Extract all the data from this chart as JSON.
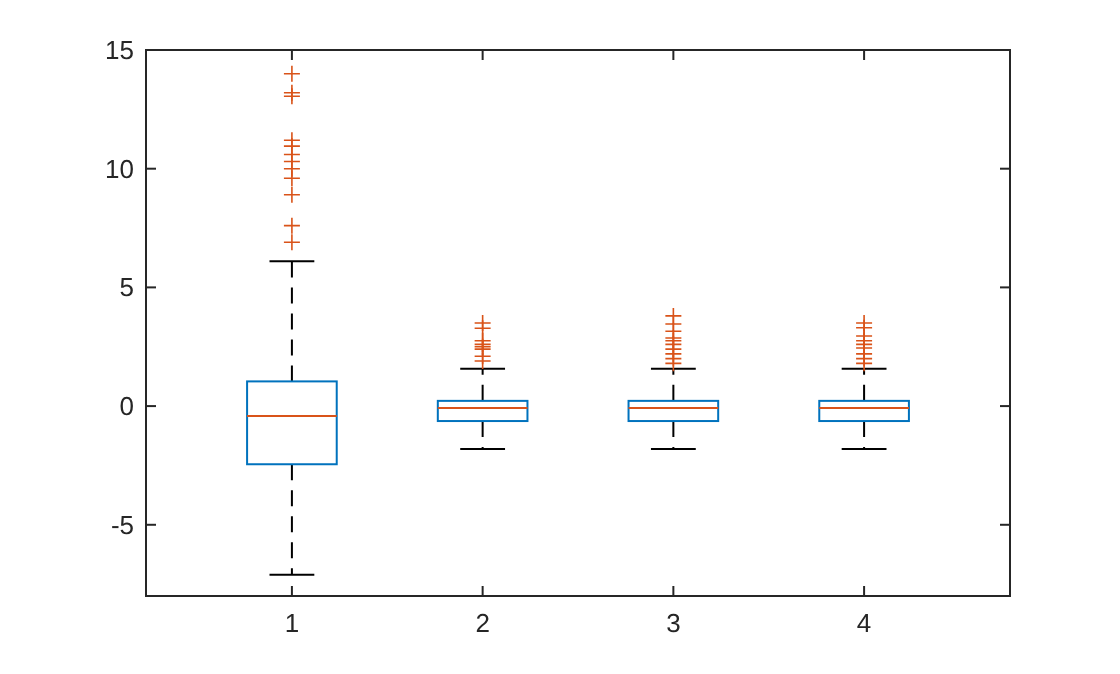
{
  "chart_data": {
    "type": "box",
    "categories": [
      "1",
      "2",
      "3",
      "4"
    ],
    "boxes": [
      {
        "low": -7.1,
        "q1": -2.45,
        "median": -0.42,
        "q3": 1.04,
        "high": 6.1,
        "outliers": [
          14.0,
          13.2,
          13.05,
          11.2,
          10.95,
          10.6,
          10.3,
          10.0,
          9.6,
          8.9,
          7.6,
          6.9
        ]
      },
      {
        "low": -1.81,
        "q1": -0.63,
        "median": -0.08,
        "q3": 0.22,
        "high": 1.57,
        "outliers": [
          3.5,
          3.28,
          2.75,
          2.6,
          2.5,
          2.4,
          2.1,
          1.9
        ]
      },
      {
        "low": -1.81,
        "q1": -0.63,
        "median": -0.08,
        "q3": 0.22,
        "high": 1.57,
        "outliers": [
          3.8,
          3.46,
          3.15,
          2.87,
          2.75,
          2.6,
          2.4,
          2.2,
          2.0,
          1.8
        ]
      },
      {
        "low": -1.81,
        "q1": -0.63,
        "median": -0.08,
        "q3": 0.22,
        "high": 1.57,
        "outliers": [
          3.5,
          3.3,
          2.95,
          2.75,
          2.6,
          2.45,
          2.2,
          2.0,
          1.8
        ]
      }
    ],
    "color": "#0072bd",
    "marker": "cross",
    "line_style": "dashed",
    "ylim": [
      -8,
      15
    ],
    "yticks": [
      -5,
      0,
      5,
      10,
      15
    ],
    "grid": false
  }
}
